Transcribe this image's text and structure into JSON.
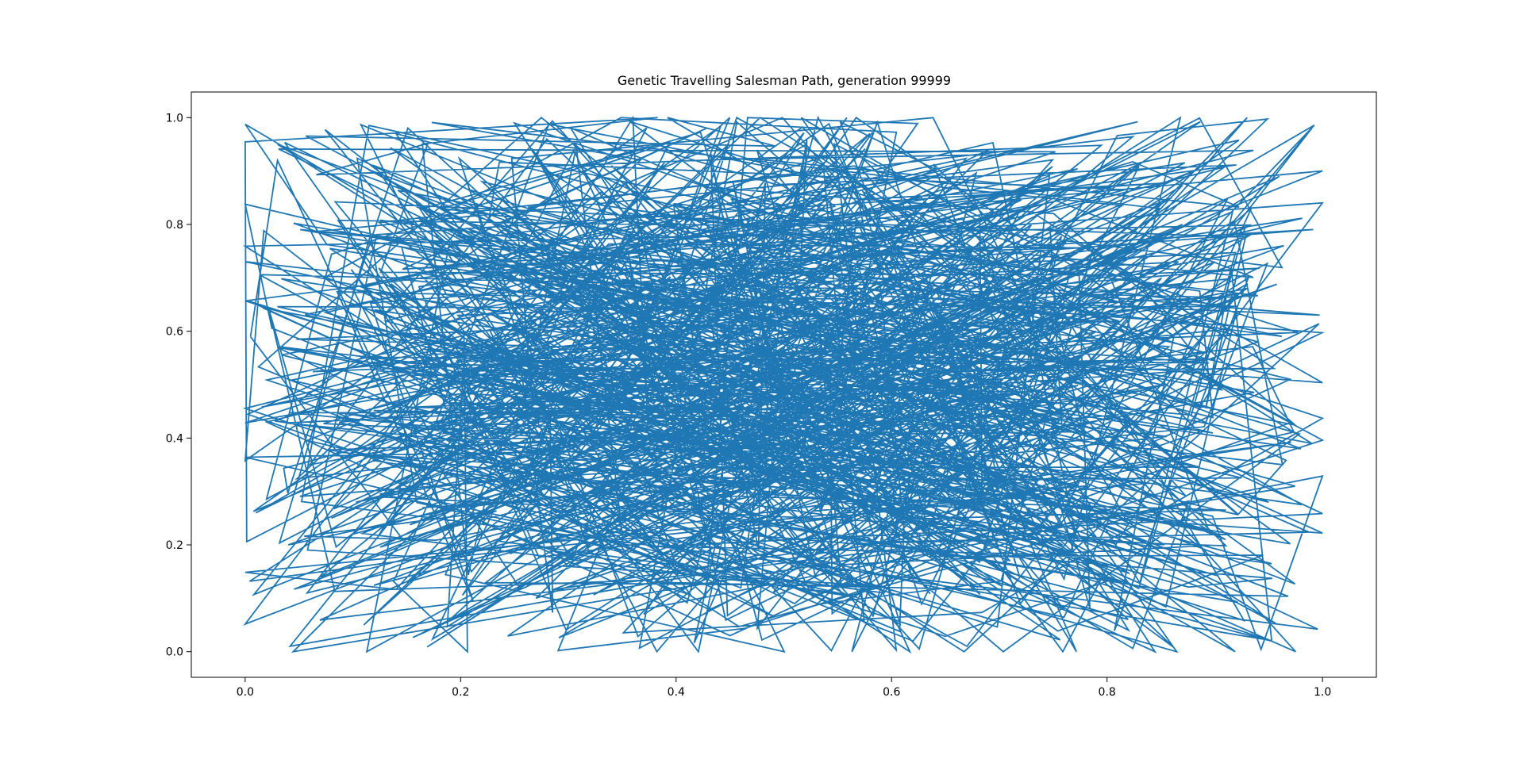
{
  "chart_data": {
    "type": "line",
    "title": "Genetic Travelling Salesman Path, generation 99999",
    "xlabel": "",
    "ylabel": "",
    "xlim": [
      -0.05,
      1.05
    ],
    "ylim": [
      -0.048,
      1.048
    ],
    "x_ticks": [
      "0.0",
      "0.2",
      "0.4",
      "0.6",
      "0.8",
      "1.0"
    ],
    "y_ticks": [
      "0.0",
      "0.2",
      "0.4",
      "0.6",
      "0.8",
      "1.0"
    ],
    "grid": false,
    "legend": "none",
    "line_color": "#1f77b4",
    "series": [
      {
        "values_note_excluded": true,
        "x": [
          0.005,
          0.03,
          0.21,
          0.48,
          0.72,
          0.99,
          0.62,
          0.05,
          0.33,
          0.91,
          0.42,
          0.11,
          0.57,
          0.84,
          0.26,
          0.68,
          0.03,
          0.95,
          0.39,
          0.17,
          0.76,
          0.52,
          0.08,
          0.88,
          0.31,
          0.64,
          0.02,
          0.45,
          0.97,
          0.22,
          0.59,
          0.81,
          0.14,
          0.36,
          0.73,
          0.49,
          0.93,
          0.06,
          0.28,
          0.66,
          0.41,
          0.86,
          0.19,
          0.55,
          0.98,
          0.12,
          0.71,
          0.34,
          0.61,
          0.04,
          0.83,
          0.47,
          0.25,
          0.89,
          0.15,
          0.53,
          0.78,
          0.38,
          0.01,
          0.69,
          0.27,
          0.94,
          0.44,
          0.09,
          0.6,
          0.82,
          0.23,
          0.5,
          0.96,
          0.13,
          0.74,
          0.35,
          0.58,
          0.07,
          0.87,
          0.43,
          0.2,
          0.67,
          0.92,
          0.3,
          0.54,
          0.1,
          0.79,
          0.37,
          0.63,
          0.99,
          0.16,
          0.46,
          0.85,
          0.24,
          0.7,
          0.03,
          0.51,
          0.9,
          0.32,
          0.65,
          0.18,
          0.77,
          0.4,
          0.005
        ],
        "y": [
          0.59,
          0.92,
          0.15,
          0.78,
          0.33,
          0.98,
          0.02,
          0.47,
          0.86,
          0.21,
          0.61,
          0.05,
          0.93,
          0.4,
          0.7,
          0.12,
          0.95,
          0.28,
          0.55,
          0.83,
          0.08,
          0.66,
          0.25,
          0.9,
          0.37,
          0.74,
          0.43,
          0.03,
          0.51,
          0.88,
          0.19,
          0.62,
          0.97,
          0.3,
          0.8,
          0.11,
          0.68,
          0.35,
          0.96,
          0.23,
          0.49,
          0.85,
          0.06,
          0.72,
          0.38,
          0.64,
          0.17,
          0.91,
          0.45,
          0.2,
          0.76,
          0.29,
          0.99,
          0.56,
          0.13,
          0.82,
          0.41,
          0.69,
          0.26,
          0.94,
          0.1,
          0.58,
          0.87,
          0.36,
          0.75,
          0.04,
          0.63,
          0.32,
          0.89,
          0.18,
          0.7,
          0.48,
          0.97,
          0.14,
          0.8,
          0.27,
          0.53,
          0.01,
          0.67,
          0.44,
          0.92,
          0.22,
          0.6,
          0.07,
          0.84,
          0.39,
          0.71,
          0.16,
          0.5,
          0.79,
          0.31,
          0.57,
          0.09,
          0.73,
          0.24,
          0.88,
          0.42,
          0.65,
          0.34,
          0.59
        ]
      }
    ]
  }
}
